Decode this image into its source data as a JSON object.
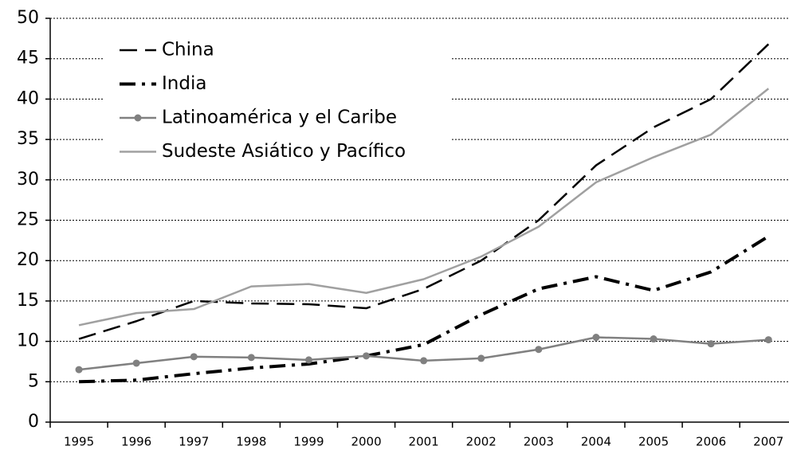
{
  "chart_data": {
    "type": "line",
    "categories": [
      "1995",
      "1996",
      "1997",
      "1998",
      "1999",
      "2000",
      "2001",
      "2002",
      "2003",
      "2004",
      "2005",
      "2006",
      "2007"
    ],
    "series": [
      {
        "name": "China",
        "color": "#000000",
        "line_style": "dashed",
        "values": [
          10.3,
          12.5,
          15.0,
          14.7,
          14.6,
          14.1,
          16.5,
          20.0,
          25.0,
          31.8,
          36.5,
          40.0,
          46.8
        ]
      },
      {
        "name": "India",
        "color": "#000000",
        "line_style": "dashdot",
        "values": [
          5.0,
          5.2,
          6.0,
          6.7,
          7.2,
          8.2,
          9.6,
          13.3,
          16.5,
          18.0,
          16.3,
          18.6,
          23.0
        ]
      },
      {
        "name": "Latinoamérica y el Caribe",
        "color": "#808080",
        "line_style": "solid",
        "marker": "circle",
        "values": [
          6.5,
          7.3,
          8.1,
          8.0,
          7.7,
          8.2,
          7.6,
          7.9,
          9.0,
          10.5,
          10.3,
          9.7,
          10.2
        ]
      },
      {
        "name": "Sudeste Asiático y Pacífico",
        "color": "#a0a0a0",
        "line_style": "solid",
        "values": [
          12.0,
          13.5,
          14.0,
          16.8,
          17.1,
          16.0,
          17.7,
          20.5,
          24.2,
          29.7,
          32.8,
          35.6,
          41.3
        ]
      }
    ],
    "ylim": [
      0,
      50
    ],
    "yticks": [
      0,
      5,
      10,
      15,
      20,
      25,
      30,
      35,
      40,
      45,
      50
    ],
    "grid": true,
    "legend": "upper left"
  }
}
